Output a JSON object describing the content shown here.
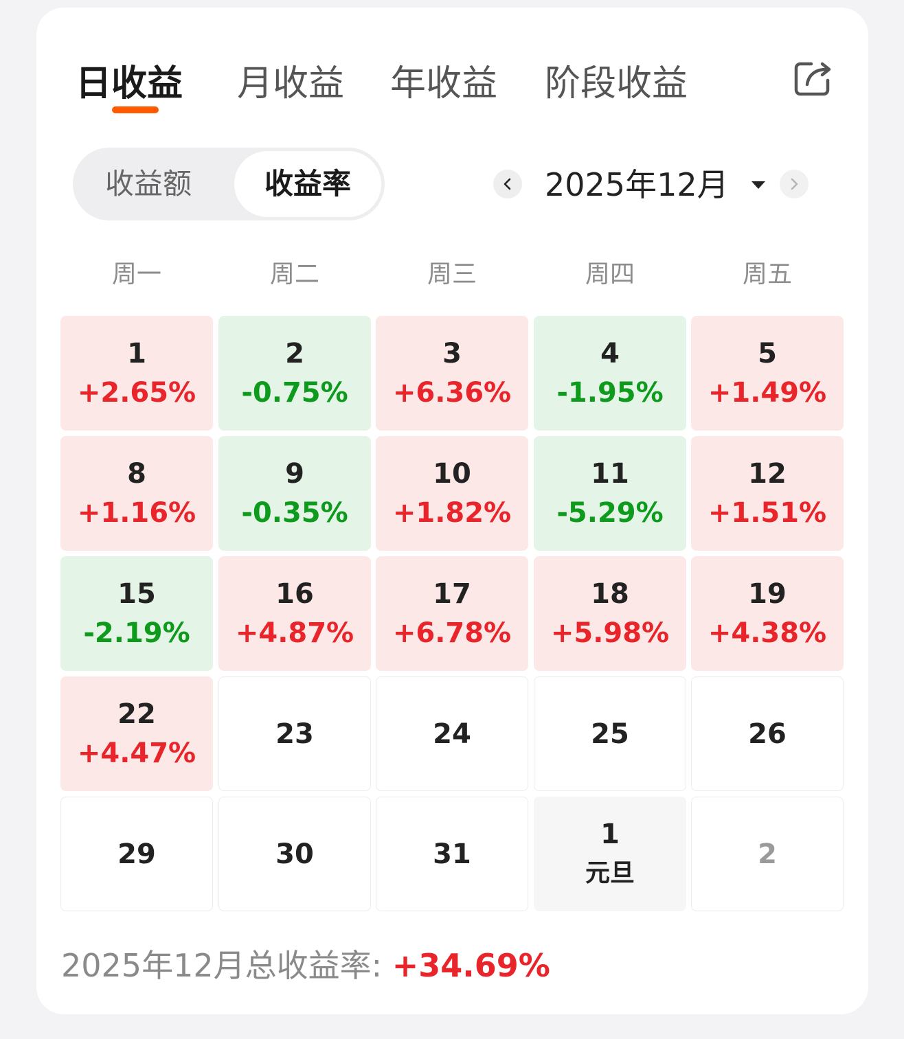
{
  "tabs": [
    {
      "label": "日收益",
      "active": true
    },
    {
      "label": "月收益",
      "active": false
    },
    {
      "label": "年收益",
      "active": false
    },
    {
      "label": "阶段收益",
      "active": false
    }
  ],
  "share_icon": "share-icon",
  "segment": {
    "options": [
      {
        "label": "收益额",
        "active": false
      },
      {
        "label": "收益率",
        "active": true
      }
    ]
  },
  "month_nav": {
    "current": "2025年12月",
    "prev_icon": "chevron-left-icon",
    "next_icon": "chevron-right-icon",
    "dropdown_icon": "caret-down-icon"
  },
  "weekdays": [
    "周一",
    "周二",
    "周三",
    "周四",
    "周五"
  ],
  "colors": {
    "gain_text": "#e8252a",
    "loss_text": "#0e9a1c",
    "gain_bg": "#fde8e8",
    "loss_bg": "#e4f4e6",
    "tab_indicator": "#ff5a00"
  },
  "calendar": [
    {
      "day": "1",
      "rate": "+2.65%",
      "status": "up"
    },
    {
      "day": "2",
      "rate": "-0.75%",
      "status": "down"
    },
    {
      "day": "3",
      "rate": "+6.36%",
      "status": "up"
    },
    {
      "day": "4",
      "rate": "-1.95%",
      "status": "down"
    },
    {
      "day": "5",
      "rate": "+1.49%",
      "status": "up"
    },
    {
      "day": "8",
      "rate": "+1.16%",
      "status": "up"
    },
    {
      "day": "9",
      "rate": "-0.35%",
      "status": "down"
    },
    {
      "day": "10",
      "rate": "+1.82%",
      "status": "up"
    },
    {
      "day": "11",
      "rate": "-5.29%",
      "status": "down"
    },
    {
      "day": "12",
      "rate": "+1.51%",
      "status": "up"
    },
    {
      "day": "15",
      "rate": "-2.19%",
      "status": "down"
    },
    {
      "day": "16",
      "rate": "+4.87%",
      "status": "up"
    },
    {
      "day": "17",
      "rate": "+6.78%",
      "status": "up"
    },
    {
      "day": "18",
      "rate": "+5.98%",
      "status": "up"
    },
    {
      "day": "19",
      "rate": "+4.38%",
      "status": "up"
    },
    {
      "day": "22",
      "rate": "+4.47%",
      "status": "up"
    },
    {
      "day": "23",
      "rate": "",
      "status": "none"
    },
    {
      "day": "24",
      "rate": "",
      "status": "none"
    },
    {
      "day": "25",
      "rate": "",
      "status": "none"
    },
    {
      "day": "26",
      "rate": "",
      "status": "none"
    },
    {
      "day": "29",
      "rate": "",
      "status": "none"
    },
    {
      "day": "30",
      "rate": "",
      "status": "none"
    },
    {
      "day": "31",
      "rate": "",
      "status": "none"
    },
    {
      "day": "1",
      "rate": "",
      "status": "holiday",
      "holiday": "元旦"
    },
    {
      "day": "2",
      "rate": "",
      "status": "muted"
    }
  ],
  "summary": {
    "label": "2025年12月总收益率:",
    "value": "+34.69%"
  }
}
